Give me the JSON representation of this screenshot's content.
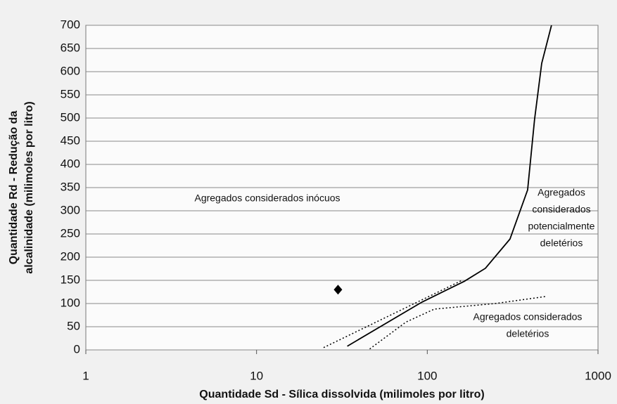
{
  "chart_data": {
    "type": "scatter",
    "x_label": "Quantidade Sd - Sílica dissolvida (milimoles por litro)",
    "y_label": [
      "Quantidade Rd - Redução da",
      "alcalinidade (milimoles por litro)"
    ],
    "xlog": true,
    "xlim": [
      1,
      1000
    ],
    "ylim": [
      0,
      700
    ],
    "xticks": [
      1,
      10,
      100,
      1000
    ],
    "yticks": [
      0,
      50,
      100,
      150,
      200,
      250,
      300,
      350,
      400,
      450,
      500,
      550,
      600,
      650,
      700
    ],
    "grid": true,
    "series": [
      {
        "style": "marker",
        "color": "#000000",
        "x": [
          30
        ],
        "values": [
          130
        ]
      },
      {
        "style": "solid",
        "color": "#000000",
        "x": [
          34,
          93,
          165,
          219,
          305,
          387,
          425,
          468,
          534
        ],
        "values": [
          8,
          103,
          148,
          176,
          239,
          345,
          497,
          618,
          700
        ]
      },
      {
        "style": "dotted",
        "color": "#000000",
        "x": [
          24.7,
          160
        ],
        "values": [
          5,
          150
        ]
      },
      {
        "style": "dotted",
        "color": "#000000",
        "x": [
          46,
          75,
          110,
          250,
          490
        ],
        "values": [
          2,
          60,
          88,
          100,
          115
        ]
      }
    ],
    "annotations": [
      [
        "Agregados considerados inócuos"
      ],
      [
        "Agregados",
        "considerados",
        "potencialmente",
        "deletérios"
      ],
      [
        "Agregados considerados",
        "deletérios"
      ]
    ]
  }
}
